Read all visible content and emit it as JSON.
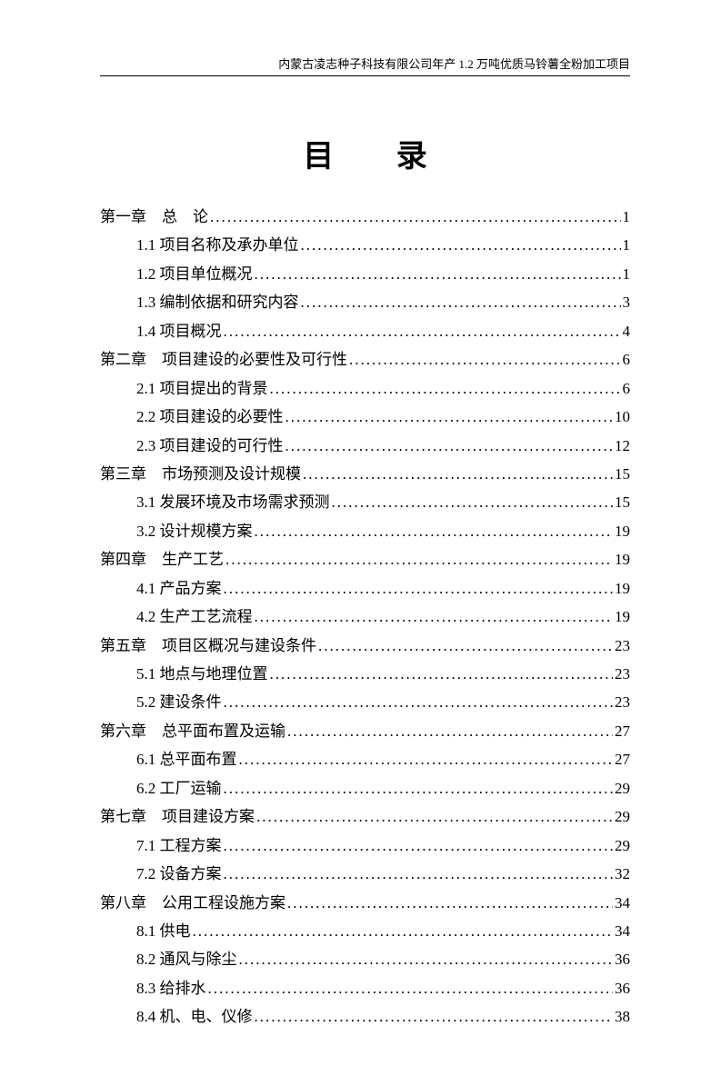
{
  "header": "内蒙古凌志种子科技有限公司年产 1.2 万吨优质马铃薯全粉加工项目",
  "title": "目  录",
  "entries": [
    {
      "label": "第一章　总　论",
      "page": "1",
      "level": 0
    },
    {
      "label": "1.1 项目名称及承办单位",
      "page": "1",
      "level": 1
    },
    {
      "label": "1.2  项目单位概况",
      "page": "1",
      "level": 1
    },
    {
      "label": "1.3  编制依据和研究内容",
      "page": "3",
      "level": 1
    },
    {
      "label": "1.4 项目概况",
      "page": "4",
      "level": 1
    },
    {
      "label": "第二章　项目建设的必要性及可行性",
      "page": "6",
      "level": 0
    },
    {
      "label": "2.1 项目提出的背景",
      "page": "6",
      "level": 1
    },
    {
      "label": "2.2 项目建设的必要性",
      "page": "10",
      "level": 1
    },
    {
      "label": "2.3 项目建设的可行性",
      "page": "12",
      "level": 1
    },
    {
      "label": "第三章　市场预测及设计规模",
      "page": "15",
      "level": 0
    },
    {
      "label": "3.1 发展环境及市场需求预测",
      "page": "15",
      "level": 1
    },
    {
      "label": "3.2 设计规模方案",
      "page": "19",
      "level": 1
    },
    {
      "label": "第四章　生产工艺",
      "page": "19",
      "level": 0
    },
    {
      "label": "4.1 产品方案",
      "page": "19",
      "level": 1
    },
    {
      "label": "4.2  生产工艺流程",
      "page": "19",
      "level": 1
    },
    {
      "label": "第五章　项目区概况与建设条件",
      "page": "23",
      "level": 0
    },
    {
      "label": "5.1 地点与地理位置",
      "page": "23",
      "level": 1
    },
    {
      "label": "5.2 建设条件",
      "page": "23",
      "level": 1
    },
    {
      "label": "第六章　总平面布置及运输",
      "page": "27",
      "level": 0
    },
    {
      "label": "6.1 总平面布置",
      "page": "27",
      "level": 1
    },
    {
      "label": "6.2 工厂运输",
      "page": "29",
      "level": 1
    },
    {
      "label": "第七章　项目建设方案",
      "page": "29",
      "level": 0
    },
    {
      "label": "7.1 工程方案",
      "page": "29",
      "level": 1
    },
    {
      "label": "7.2 设备方案",
      "page": "32",
      "level": 1
    },
    {
      "label": "第八章　公用工程设施方案",
      "page": "34",
      "level": 0
    },
    {
      "label": "8.1 供电",
      "page": "34",
      "level": 1
    },
    {
      "label": "8.2 通风与除尘",
      "page": "36",
      "level": 1
    },
    {
      "label": "8.3 给排水",
      "page": "36",
      "level": 1
    },
    {
      "label": "8.4 机、电、仪修",
      "page": "38",
      "level": 1
    }
  ]
}
